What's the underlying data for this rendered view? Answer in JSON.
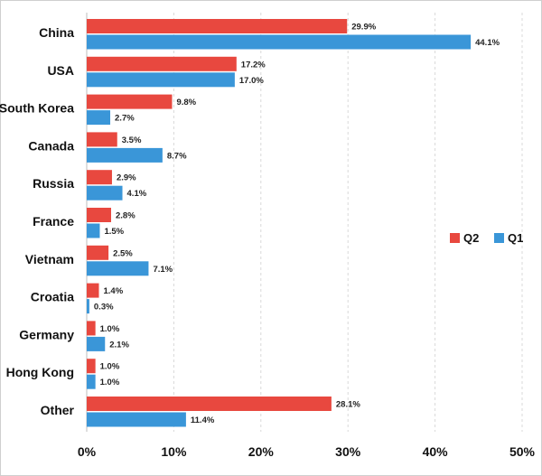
{
  "chart_data": {
    "type": "bar",
    "orientation": "horizontal",
    "title": "",
    "xlabel": "",
    "ylabel": "",
    "categories": [
      "China",
      "USA",
      "South Korea",
      "Canada",
      "Russia",
      "France",
      "Vietnam",
      "Croatia",
      "Germany",
      "Hong Kong",
      "Other"
    ],
    "series": [
      {
        "name": "Q2",
        "color": "#e8483f",
        "values": [
          29.9,
          17.2,
          9.8,
          3.5,
          2.9,
          2.8,
          2.5,
          1.4,
          1.0,
          1.0,
          28.1
        ],
        "labels": [
          "29.9%",
          "17.2%",
          "9.8%",
          "3.5%",
          "2.9%",
          "2.8%",
          "2.5%",
          "1.4%",
          "1.0%",
          "1.0%",
          "28.1%"
        ]
      },
      {
        "name": "Q1",
        "color": "#3a96d8",
        "values": [
          44.1,
          17.0,
          2.7,
          8.7,
          4.1,
          1.5,
          7.1,
          0.3,
          2.1,
          1.0,
          11.4
        ],
        "labels": [
          "44.1%",
          "17.0%",
          "2.7%",
          "8.7%",
          "4.1%",
          "1.5%",
          "7.1%",
          "0.3%",
          "2.1%",
          "1.0%",
          "11.4%"
        ]
      }
    ],
    "xlim": [
      0,
      50
    ],
    "xticks": [
      0,
      10,
      20,
      30,
      40,
      50
    ],
    "xtick_labels": [
      "0%",
      "10%",
      "20%",
      "30%",
      "40%",
      "50%"
    ],
    "grid": true,
    "legend_position": "right"
  }
}
